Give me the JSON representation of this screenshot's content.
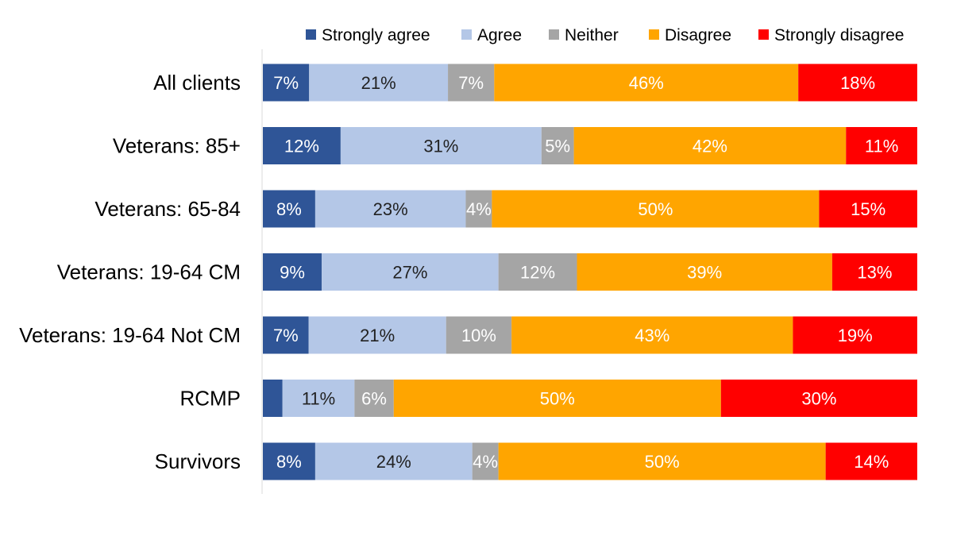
{
  "chart_data": {
    "type": "bar",
    "orientation": "horizontal",
    "stacked": true,
    "normalized": true,
    "title": "",
    "xlabel": "",
    "ylabel": "",
    "legend_position": "top-right",
    "categories": [
      "All clients",
      "Veterans: 85+",
      "Veterans: 65-84",
      "Veterans: 19-64 CM",
      "Veterans: 19-64 Not CM",
      "RCMP",
      "Survivors"
    ],
    "series": [
      {
        "name": "Strongly agree",
        "color": "#2f5597",
        "label_color": "#ffffff",
        "values": [
          7,
          12,
          8,
          9,
          7,
          3,
          8
        ],
        "labels": [
          "7%",
          "12%",
          "8%",
          "9%",
          "7%",
          "",
          "8%"
        ]
      },
      {
        "name": "Agree",
        "color": "#b4c7e7",
        "label_color": "#222222",
        "values": [
          21,
          31,
          23,
          27,
          21,
          11,
          24
        ],
        "labels": [
          "21%",
          "31%",
          "23%",
          "27%",
          "21%",
          "11%",
          "24%"
        ]
      },
      {
        "name": "Neither",
        "color": "#a5a5a5",
        "label_color": "#ffffff",
        "values": [
          7,
          5,
          4,
          12,
          10,
          6,
          4
        ],
        "labels": [
          "7%",
          "5%",
          "4%",
          "12%",
          "10%",
          "6%",
          "4%"
        ]
      },
      {
        "name": "Disagree",
        "color": "#ffa500",
        "label_color": "#ffffff",
        "values": [
          46,
          42,
          50,
          39,
          43,
          50,
          50
        ],
        "labels": [
          "46%",
          "42%",
          "50%",
          "39%",
          "43%",
          "50%",
          "50%"
        ]
      },
      {
        "name": "Strongly disagree",
        "color": "#ff0000",
        "label_color": "#ffffff",
        "values": [
          18,
          11,
          15,
          13,
          19,
          30,
          14
        ],
        "labels": [
          "18%",
          "11%",
          "15%",
          "13%",
          "19%",
          "30%",
          "14%"
        ]
      }
    ]
  }
}
